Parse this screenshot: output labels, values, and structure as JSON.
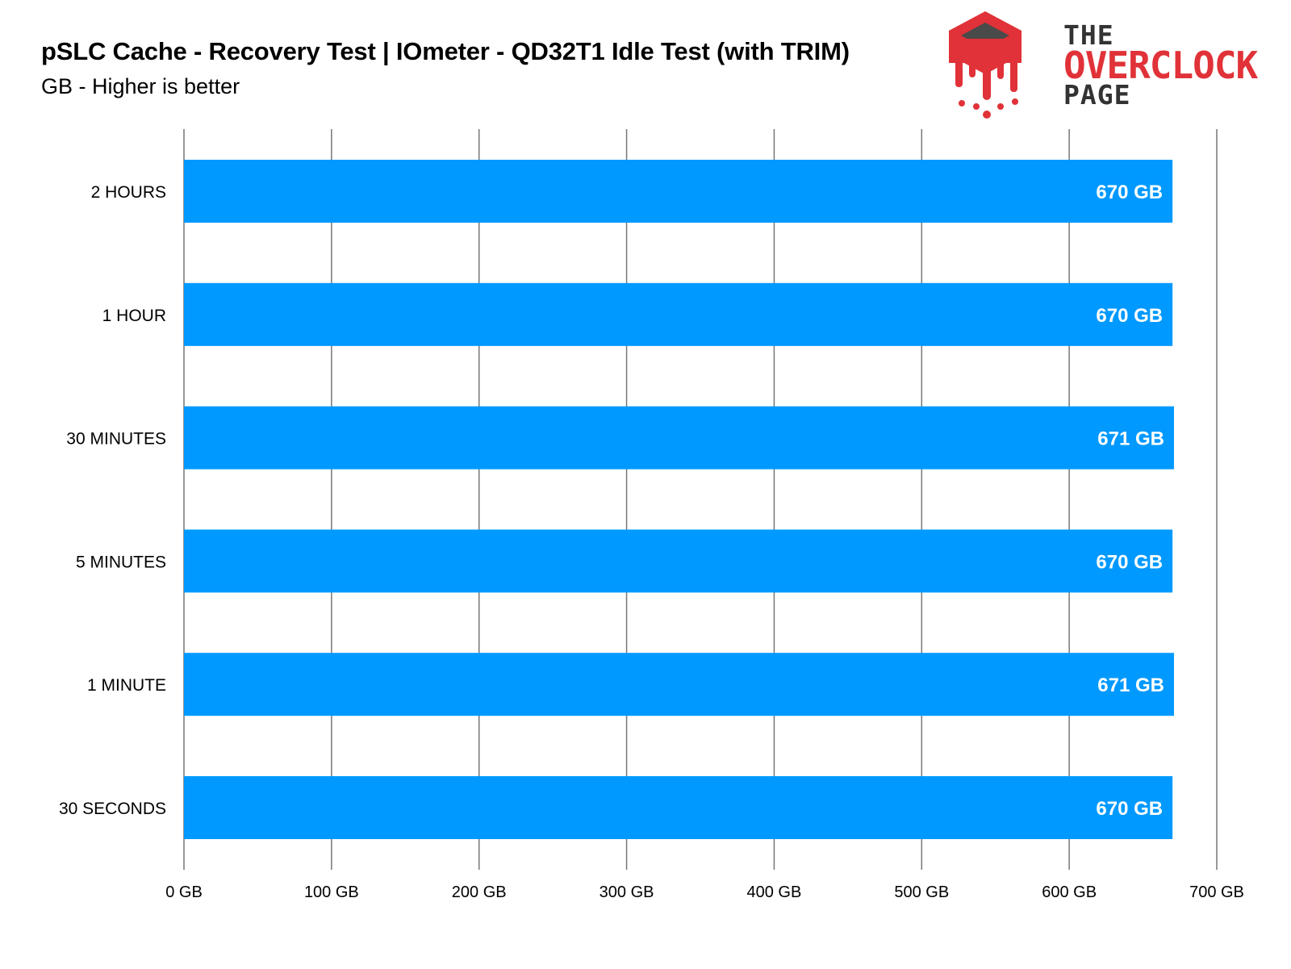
{
  "header": {
    "title": "pSLC Cache - Recovery Test | IOmeter - QD32T1 Idle Test (with TRIM)",
    "subtitle": "GB - Higher is better"
  },
  "logo": {
    "line1": "THE",
    "line2": "OVERCLOCK",
    "line3": "PAGE",
    "icon": "cpu-chip-melting-icon",
    "accent_color": "#e03238",
    "text_color": "#333333"
  },
  "chart_data": {
    "type": "bar",
    "orientation": "horizontal",
    "title": "pSLC Cache - Recovery Test | IOmeter - QD32T1 Idle Test (with TRIM)",
    "subtitle": "GB - Higher is better",
    "categories": [
      "2 HOURS",
      "1 HOUR",
      "30 MINUTES",
      "5 MINUTES",
      "1 MINUTE",
      "30 SECONDS"
    ],
    "values": [
      670,
      670,
      671,
      670,
      671,
      670
    ],
    "data_labels": [
      "670 GB",
      "670 GB",
      "671 GB",
      "670 GB",
      "671 GB",
      "670 GB"
    ],
    "xlim": [
      0,
      700
    ],
    "xticks": [
      0,
      100,
      200,
      300,
      400,
      500,
      600,
      700
    ],
    "xtick_labels": [
      "0 GB",
      "100 GB",
      "200 GB",
      "300 GB",
      "400 GB",
      "500 GB",
      "600 GB",
      "700 GB"
    ],
    "xlabel": "",
    "ylabel": "",
    "grid": true,
    "bar_color": "#0099ff",
    "grid_color": "#777777"
  }
}
